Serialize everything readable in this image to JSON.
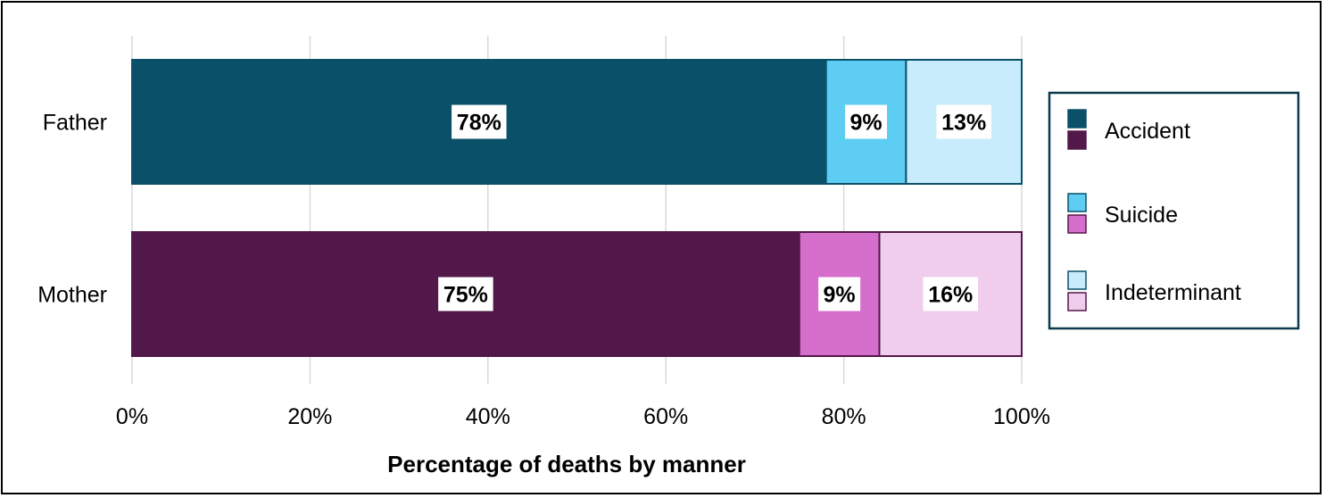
{
  "chart_data": {
    "type": "bar",
    "orientation": "horizontal",
    "stacked": true,
    "categories": [
      "Father",
      "Mother"
    ],
    "series": [
      {
        "name": "Accident",
        "values": [
          78,
          75
        ],
        "labels": [
          "78%",
          "75%"
        ],
        "colors": [
          "#0b5069",
          "#521849"
        ]
      },
      {
        "name": "Suicide",
        "values": [
          9,
          9
        ],
        "labels": [
          "9%",
          "9%"
        ],
        "colors": [
          "#5ecdf3",
          "#d66fcc"
        ]
      },
      {
        "name": "Indeterminant",
        "values": [
          13,
          16
        ],
        "labels": [
          "13%",
          "16%"
        ],
        "colors": [
          "#c8ecfb",
          "#f0cdec"
        ]
      }
    ],
    "edge_colors": [
      "#0b5069",
      "#521849"
    ],
    "xlim": [
      0,
      100
    ],
    "xticks": [
      0,
      20,
      40,
      60,
      80,
      100
    ],
    "xtick_labels": [
      "0%",
      "20%",
      "40%",
      "60%",
      "80%",
      "100%"
    ],
    "xlabel": "Percentage of deaths by manner",
    "ylabel": "",
    "title": "",
    "grid": "vertical",
    "legend_position": "right"
  }
}
